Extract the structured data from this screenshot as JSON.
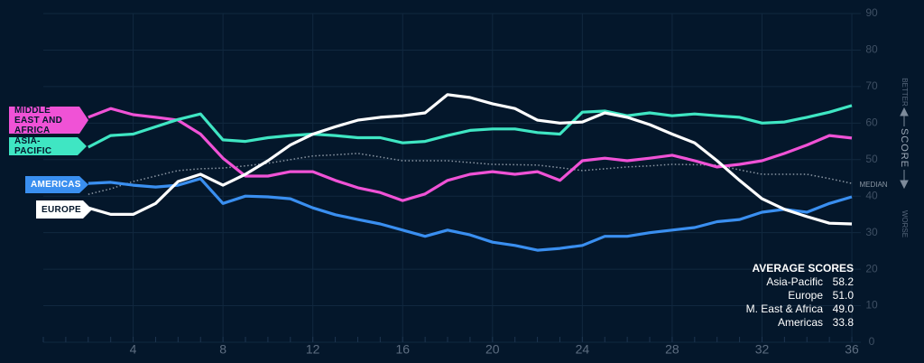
{
  "chart_data": {
    "type": "line",
    "x": [
      2,
      3,
      4,
      5,
      6,
      7,
      8,
      9,
      10,
      11,
      12,
      13,
      14,
      15,
      16,
      17,
      18,
      19,
      20,
      21,
      22,
      23,
      24,
      25,
      26,
      27,
      28,
      29,
      30,
      31,
      32,
      33,
      34,
      35,
      36
    ],
    "series": [
      {
        "name": "ASIA-PACIFIC",
        "color": "#3fe6c3",
        "values": [
          53.4,
          56.6,
          57,
          59,
          61,
          62.5,
          55.4,
          55,
          56,
          56.6,
          57,
          56.6,
          56,
          56,
          54.6,
          55,
          56.6,
          58,
          58.4,
          58.4,
          57.4,
          57,
          63,
          63.3,
          62,
          62.8,
          62,
          62.5,
          62,
          61.6,
          60,
          60.3,
          61.6,
          63,
          64.8
        ]
      },
      {
        "name": "EUROPE",
        "color": "#ffffff",
        "values": [
          36.8,
          35,
          35,
          38,
          44,
          46,
          43,
          46,
          49.7,
          54,
          57,
          59,
          60.8,
          61.6,
          62,
          62.8,
          67.8,
          67,
          65.3,
          64,
          60.8,
          60,
          60.3,
          62.8,
          61.6,
          59.6,
          57,
          54.6,
          49.7,
          44.3,
          39.3,
          36.4,
          34.4,
          32.6,
          32.4
        ]
      },
      {
        "name": "MIDDLE EAST AND AFRICA",
        "color": "#f052d6",
        "values": [
          61.6,
          64,
          62.3,
          61.6,
          60.8,
          57,
          50.4,
          45.5,
          45.5,
          46.7,
          46.7,
          44.3,
          42.3,
          41,
          38.8,
          40.6,
          44.3,
          46,
          46.7,
          46,
          46.7,
          44.3,
          49.7,
          50.4,
          49.7,
          50.4,
          51.2,
          49.7,
          48,
          48.7,
          49.7,
          51.7,
          54,
          56.6,
          55.9
        ]
      },
      {
        "name": "AMERICAS",
        "color": "#3a8ff0",
        "values": [
          43.5,
          43.8,
          43,
          42.5,
          43,
          44.8,
          38,
          40,
          39.8,
          39.3,
          36.8,
          34.9,
          33.6,
          32.4,
          30.7,
          29,
          30.7,
          29.4,
          27.4,
          26.5,
          25.2,
          25.7,
          26.5,
          29,
          29,
          30,
          30.7,
          31.4,
          33,
          33.6,
          35.6,
          36.4,
          35.6,
          38,
          39.8
        ]
      },
      {
        "name": "MEDIAN",
        "color": "#8a96a3",
        "values": [
          40.5,
          42,
          44,
          45.5,
          47,
          47.5,
          47.7,
          48.3,
          49,
          50,
          51,
          51.3,
          51.7,
          50.7,
          49.7,
          49.7,
          49.7,
          49.2,
          48.7,
          48.6,
          48.5,
          47.8,
          47,
          47.5,
          48,
          48.3,
          48.7,
          48.6,
          48.5,
          47.2,
          46,
          46,
          46,
          44.8,
          43.5
        ]
      }
    ],
    "xlim": [
      0,
      36.4
    ],
    "xticks": [
      4,
      8,
      12,
      16,
      20,
      24,
      28,
      32,
      36
    ],
    "ylim": [
      0,
      90
    ],
    "yticks": [
      0,
      10,
      20,
      30,
      40,
      50,
      60,
      70,
      80,
      90
    ],
    "grid": true,
    "y_label": "SCORE",
    "annotations": {
      "better": "BETTER",
      "worse": "WORSE"
    },
    "average_scores": {
      "title": "AVERAGE SCORES",
      "rows": [
        [
          "Asia-Pacific",
          "58.2"
        ],
        [
          "Europe",
          "51.0"
        ],
        [
          "M. East & Africa",
          "49.0"
        ],
        [
          "Americas",
          "33.8"
        ]
      ]
    }
  }
}
